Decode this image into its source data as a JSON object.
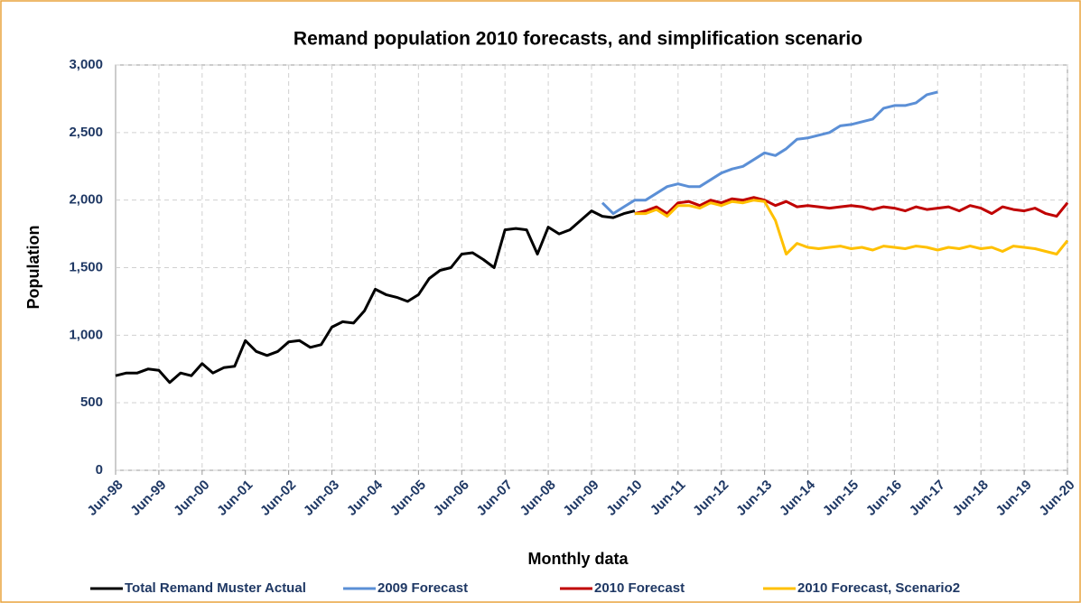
{
  "chart_data": {
    "type": "line",
    "title": "Remand population 2010 forecasts, and simplification scenario",
    "x_label": "Monthly data",
    "y_label": "Population",
    "categories": [
      "Jun-98",
      null,
      null,
      null,
      "Jun-99",
      null,
      null,
      null,
      "Jun-00",
      null,
      null,
      null,
      "Jun-01",
      null,
      null,
      null,
      "Jun-02",
      null,
      null,
      null,
      "Jun-03",
      null,
      null,
      null,
      "Jun-04",
      null,
      null,
      null,
      "Jun-05",
      null,
      null,
      null,
      "Jun-06",
      null,
      null,
      null,
      "Jun-07",
      null,
      null,
      null,
      "Jun-08",
      null,
      null,
      null,
      "Jun-09",
      null,
      null,
      null,
      "Jun-10",
      null,
      null,
      null,
      "Jun-11",
      null,
      null,
      null,
      "Jun-12",
      null,
      null,
      null,
      "Jun-13",
      null,
      null,
      null,
      "Jun-14",
      null,
      null,
      null,
      "Jun-15",
      null,
      null,
      null,
      "Jun-16",
      null,
      null,
      null,
      "Jun-17",
      null,
      null,
      null,
      "Jun-18",
      null,
      null,
      null,
      "Jun-19",
      null,
      null,
      null,
      "Jun-20"
    ],
    "series": [
      {
        "name": "Total Remand Muster Actual",
        "color": "#000000",
        "values": [
          700,
          720,
          720,
          750,
          740,
          650,
          720,
          700,
          790,
          720,
          760,
          770,
          960,
          880,
          850,
          880,
          950,
          960,
          910,
          930,
          1060,
          1100,
          1090,
          1180,
          1340,
          1300,
          1280,
          1250,
          1300,
          1420,
          1480,
          1500,
          1600,
          1610,
          1560,
          1500,
          1780,
          1790,
          1780,
          1600,
          1800,
          1750,
          1780,
          1850,
          1920,
          1880,
          1870,
          1900,
          1920,
          null,
          null,
          null,
          null,
          null,
          null,
          null,
          null,
          null,
          null,
          null,
          null,
          null,
          null,
          null,
          null,
          null,
          null,
          null,
          null,
          null,
          null,
          null,
          null,
          null,
          null,
          null,
          null,
          null,
          null,
          null,
          null,
          null,
          null,
          null,
          null,
          null,
          null,
          null,
          null
        ]
      },
      {
        "name": "2009 Forecast",
        "color": "#5b8fd6",
        "values": [
          null,
          null,
          null,
          null,
          null,
          null,
          null,
          null,
          null,
          null,
          null,
          null,
          null,
          null,
          null,
          null,
          null,
          null,
          null,
          null,
          null,
          null,
          null,
          null,
          null,
          null,
          null,
          null,
          null,
          null,
          null,
          null,
          null,
          null,
          null,
          null,
          null,
          null,
          null,
          null,
          null,
          null,
          null,
          null,
          null,
          1980,
          1900,
          1950,
          2000,
          2000,
          2050,
          2100,
          2120,
          2100,
          2100,
          2150,
          2200,
          2230,
          2250,
          2300,
          2350,
          2330,
          2380,
          2450,
          2460,
          2480,
          2500,
          2550,
          2560,
          2580,
          2600,
          2680,
          2700,
          2700,
          2720,
          2780,
          2800,
          null,
          null,
          null,
          null,
          null,
          null,
          null,
          null,
          null,
          null,
          null,
          null
        ]
      },
      {
        "name": "2010 Forecast",
        "color": "#c00000",
        "values": [
          null,
          null,
          null,
          null,
          null,
          null,
          null,
          null,
          null,
          null,
          null,
          null,
          null,
          null,
          null,
          null,
          null,
          null,
          null,
          null,
          null,
          null,
          null,
          null,
          null,
          null,
          null,
          null,
          null,
          null,
          null,
          null,
          null,
          null,
          null,
          null,
          null,
          null,
          null,
          null,
          null,
          null,
          null,
          null,
          null,
          null,
          null,
          null,
          1900,
          1920,
          1950,
          1900,
          1980,
          1990,
          1960,
          2000,
          1980,
          2010,
          2000,
          2020,
          2000,
          1960,
          1990,
          1950,
          1960,
          1950,
          1940,
          1950,
          1960,
          1950,
          1930,
          1950,
          1940,
          1920,
          1950,
          1930,
          1940,
          1950,
          1920,
          1960,
          1940,
          1900,
          1950,
          1930,
          1920,
          1940,
          1900,
          1880,
          1980
        ]
      },
      {
        "name": "2010 Forecast, Scenario2",
        "color": "#ffc000",
        "values": [
          null,
          null,
          null,
          null,
          null,
          null,
          null,
          null,
          null,
          null,
          null,
          null,
          null,
          null,
          null,
          null,
          null,
          null,
          null,
          null,
          null,
          null,
          null,
          null,
          null,
          null,
          null,
          null,
          null,
          null,
          null,
          null,
          null,
          null,
          null,
          null,
          null,
          null,
          null,
          null,
          null,
          null,
          null,
          null,
          null,
          null,
          null,
          null,
          1900,
          1900,
          1930,
          1880,
          1960,
          1960,
          1940,
          1980,
          1960,
          1990,
          1980,
          2000,
          1990,
          1850,
          1600,
          1680,
          1650,
          1640,
          1650,
          1660,
          1640,
          1650,
          1630,
          1660,
          1650,
          1640,
          1660,
          1650,
          1630,
          1650,
          1640,
          1660,
          1640,
          1650,
          1620,
          1660,
          1650,
          1640,
          1620,
          1600,
          1700
        ]
      }
    ],
    "ylim": [
      0,
      3000
    ],
    "yticks": [
      0,
      500,
      {
        "value": 1000,
        "label": "1,000"
      },
      {
        "value": 1500,
        "label": "1,500"
      },
      {
        "value": 2000,
        "label": "2,000"
      },
      {
        "value": 2500,
        "label": "2,500"
      },
      {
        "value": 3000,
        "label": "3,000"
      }
    ],
    "grid": true,
    "legend": "bottom"
  }
}
